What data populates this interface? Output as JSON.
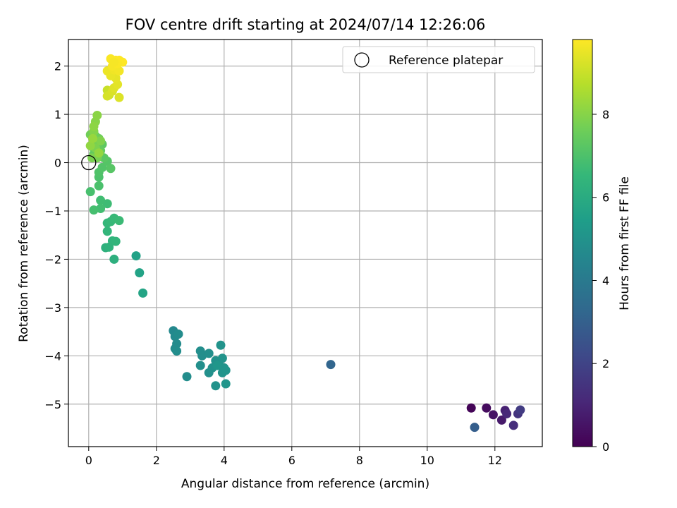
{
  "chart_data": {
    "type": "scatter",
    "title": "FOV centre drift starting at 2024/07/14 12:26:06",
    "xlabel": "Angular distance from reference (arcmin)",
    "ylabel": "Rotation from reference (arcmin)",
    "xlim": [
      -0.6,
      13.4
    ],
    "ylim": [
      -5.88,
      2.55
    ],
    "xticks": [
      0,
      2,
      4,
      6,
      8,
      10,
      12
    ],
    "yticks": [
      -5,
      -4,
      -3,
      -2,
      -1,
      0,
      1,
      2
    ],
    "grid": true,
    "legend": {
      "label": "Reference platepar",
      "placement": "upper right"
    },
    "reference": {
      "x": 0,
      "y": 0
    },
    "colorbar": {
      "label": "Hours from first FF file",
      "colormap": "viridis",
      "range": [
        0,
        9.8
      ],
      "ticks": [
        0,
        2,
        4,
        6,
        8
      ]
    },
    "colors": {
      "viridis_stops": [
        "#440154",
        "#482878",
        "#3e4989",
        "#31688e",
        "#26828e",
        "#1f9e89",
        "#35b779",
        "#6ece58",
        "#b5de2b",
        "#fde725"
      ],
      "grid": "#b0b0b0",
      "axis": "#000000"
    },
    "points": [
      [
        11.3,
        -5.08,
        0.1
      ],
      [
        11.75,
        -5.08,
        0.3
      ],
      [
        11.95,
        -5.22,
        0.5
      ],
      [
        12.2,
        -5.33,
        0.7
      ],
      [
        12.3,
        -5.13,
        0.9
      ],
      [
        12.35,
        -5.2,
        1.1
      ],
      [
        12.55,
        -5.44,
        1.3
      ],
      [
        12.68,
        -5.2,
        1.5
      ],
      [
        12.75,
        -5.12,
        1.7
      ],
      [
        11.4,
        -5.48,
        2.9
      ],
      [
        7.15,
        -4.18,
        3.2
      ],
      [
        2.5,
        -3.48,
        4.6
      ],
      [
        2.55,
        -3.6,
        4.65
      ],
      [
        2.6,
        -3.75,
        4.7
      ],
      [
        2.55,
        -3.85,
        4.72
      ],
      [
        2.65,
        -3.55,
        4.75
      ],
      [
        2.6,
        -3.9,
        4.78
      ],
      [
        2.9,
        -4.43,
        4.8
      ],
      [
        3.3,
        -3.9,
        4.82
      ],
      [
        3.35,
        -4.0,
        4.84
      ],
      [
        3.3,
        -4.2,
        4.86
      ],
      [
        3.55,
        -3.95,
        4.88
      ],
      [
        3.55,
        -4.35,
        4.9
      ],
      [
        3.65,
        -4.25,
        4.92
      ],
      [
        3.75,
        -4.1,
        4.94
      ],
      [
        3.75,
        -4.62,
        4.96
      ],
      [
        3.85,
        -4.18,
        4.98
      ],
      [
        3.9,
        -3.78,
        5.0
      ],
      [
        3.95,
        -4.05,
        5.02
      ],
      [
        3.95,
        -4.35,
        5.04
      ],
      [
        4.0,
        -4.25,
        5.06
      ],
      [
        4.05,
        -4.3,
        5.08
      ],
      [
        4.05,
        -4.58,
        5.1
      ],
      [
        3.8,
        -4.2,
        5.12
      ],
      [
        1.4,
        -1.93,
        5.6
      ],
      [
        1.5,
        -2.28,
        5.65
      ],
      [
        1.6,
        -2.7,
        5.7
      ],
      [
        0.75,
        -2.0,
        6.2
      ],
      [
        0.5,
        -1.76,
        6.25
      ],
      [
        0.6,
        -1.75,
        6.3
      ],
      [
        0.7,
        -1.62,
        6.35
      ],
      [
        0.8,
        -1.63,
        6.4
      ],
      [
        0.55,
        -1.42,
        6.45
      ],
      [
        0.55,
        -1.25,
        6.5
      ],
      [
        0.65,
        -1.22,
        6.55
      ],
      [
        0.75,
        -1.15,
        6.6
      ],
      [
        0.9,
        -1.2,
        6.65
      ],
      [
        0.55,
        -0.85,
        6.7
      ],
      [
        0.35,
        -0.78,
        6.75
      ],
      [
        0.35,
        -0.95,
        6.8
      ],
      [
        0.15,
        -0.98,
        6.85
      ],
      [
        0.05,
        -0.6,
        6.9
      ],
      [
        0.3,
        -0.48,
        6.95
      ],
      [
        0.3,
        -0.3,
        7.0
      ],
      [
        0.3,
        -0.2,
        7.05
      ],
      [
        0.4,
        -0.1,
        7.1
      ],
      [
        0.55,
        0.03,
        7.15
      ],
      [
        0.65,
        -0.12,
        7.2
      ],
      [
        0.45,
        0.1,
        7.25
      ],
      [
        0.4,
        0.38,
        7.3
      ],
      [
        0.25,
        0.25,
        7.35
      ],
      [
        0.15,
        0.18,
        7.4
      ],
      [
        0.35,
        0.25,
        7.45
      ],
      [
        0.1,
        0.33,
        7.5
      ],
      [
        0.2,
        0.55,
        7.55
      ],
      [
        0.3,
        0.5,
        7.6
      ],
      [
        0.05,
        0.58,
        7.65
      ],
      [
        0.15,
        0.4,
        7.7
      ],
      [
        0.25,
        0.1,
        7.75
      ],
      [
        0.1,
        0.1,
        7.8
      ],
      [
        0.2,
        0.3,
        7.85
      ],
      [
        0.35,
        0.45,
        7.9
      ],
      [
        0.15,
        0.65,
        7.95
      ],
      [
        0.2,
        0.85,
        8.0
      ],
      [
        0.25,
        0.98,
        8.05
      ],
      [
        0.15,
        0.75,
        8.1
      ],
      [
        0.05,
        0.35,
        8.15
      ],
      [
        0.3,
        0.2,
        8.2
      ],
      [
        0.12,
        0.5,
        8.25
      ],
      [
        0.55,
        1.5,
        9.0
      ],
      [
        0.6,
        1.4,
        9.1
      ],
      [
        0.55,
        1.38,
        9.2
      ],
      [
        0.7,
        1.48,
        9.25
      ],
      [
        0.9,
        1.35,
        9.3
      ],
      [
        0.75,
        1.55,
        9.35
      ],
      [
        0.85,
        1.62,
        9.4
      ],
      [
        0.8,
        1.75,
        9.45
      ],
      [
        0.65,
        1.8,
        9.5
      ],
      [
        0.55,
        1.9,
        9.55
      ],
      [
        0.75,
        1.92,
        9.6
      ],
      [
        0.9,
        1.9,
        9.65
      ],
      [
        0.7,
        2.0,
        9.7
      ],
      [
        0.65,
        2.15,
        9.75
      ],
      [
        0.8,
        2.12,
        9.78
      ],
      [
        0.9,
        2.12,
        9.8
      ],
      [
        1.0,
        2.08,
        9.8
      ],
      [
        0.85,
        2.05,
        9.75
      ],
      [
        0.75,
        2.08,
        9.7
      ]
    ]
  }
}
